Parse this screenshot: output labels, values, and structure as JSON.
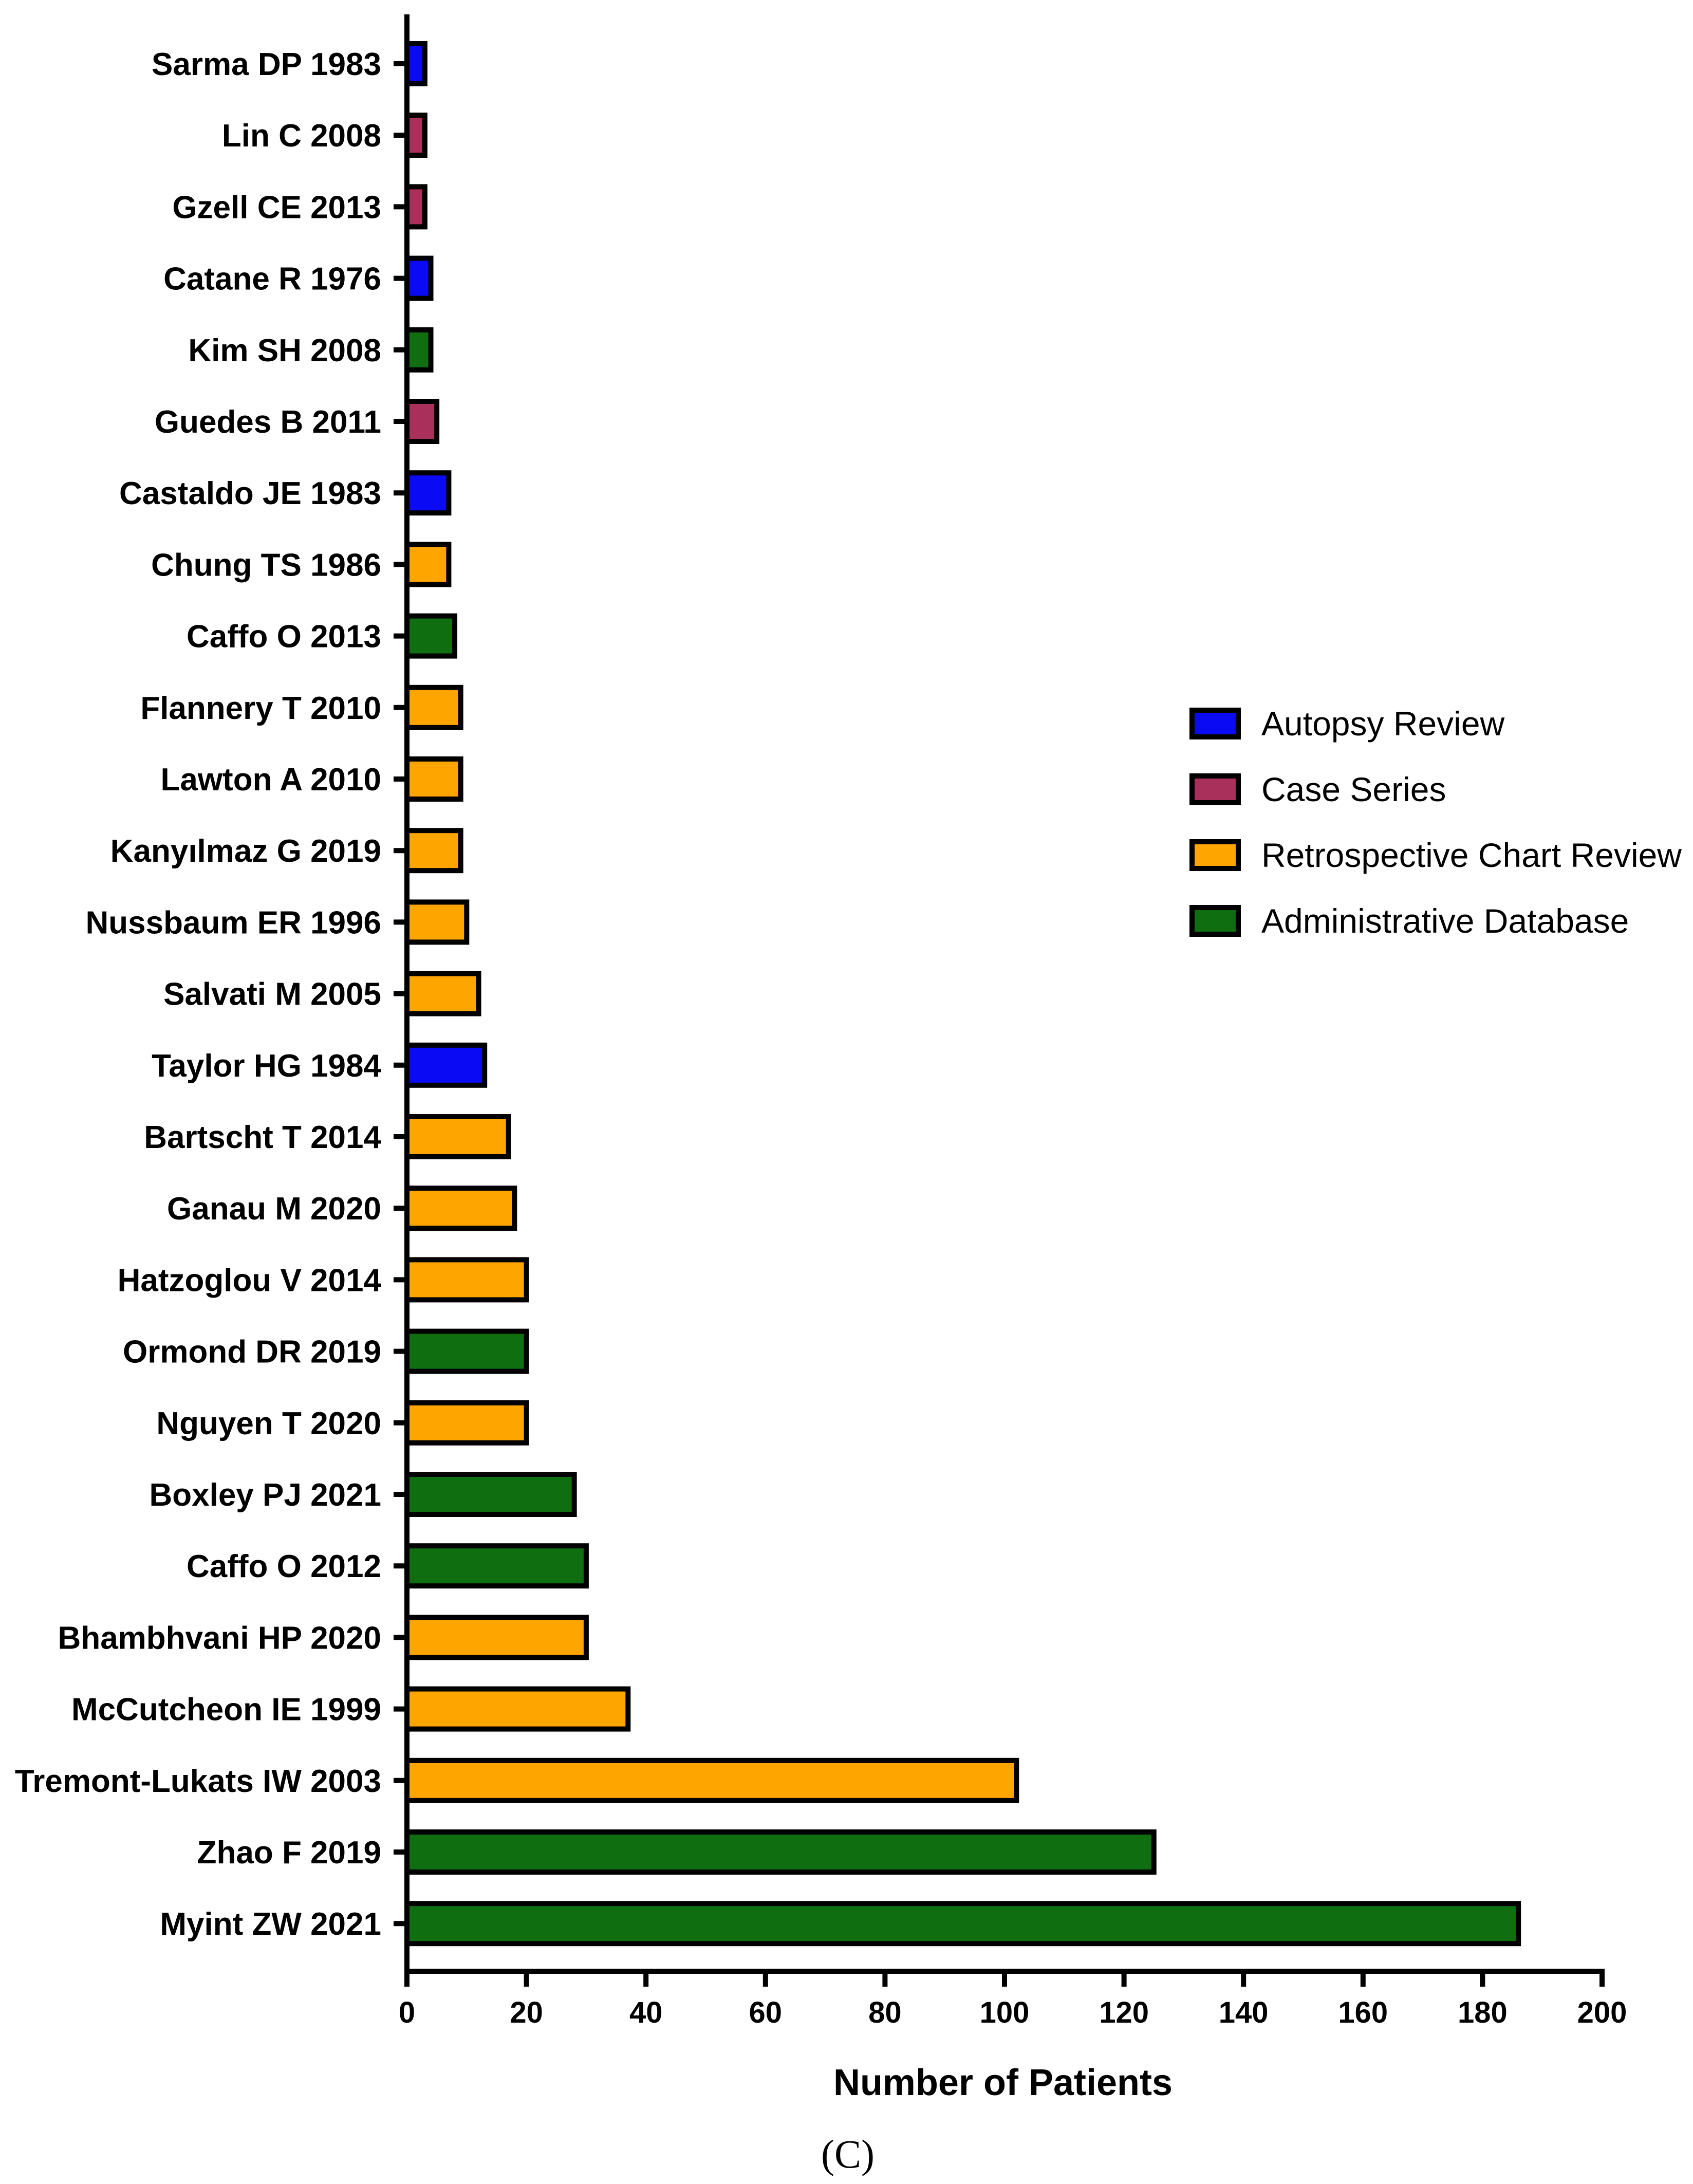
{
  "chart_data": {
    "type": "bar",
    "orientation": "horizontal",
    "xlabel": "Number of Patients",
    "xlim": [
      0,
      200
    ],
    "xticks": [
      0,
      20,
      40,
      60,
      80,
      100,
      120,
      140,
      160,
      180,
      200
    ],
    "grid": false,
    "legend_position": "right",
    "categories": [
      "Sarma DP 1983",
      "Lin C 2008",
      "Gzell CE 2013",
      "Catane R 1976",
      "Kim SH 2008",
      "Guedes B 2011",
      "Castaldo JE 1983",
      "Chung TS 1986",
      "Caffo O 2013",
      "Flannery T 2010",
      "Lawton A 2010",
      "Kanyılmaz G 2019",
      "Nussbaum ER 1996",
      "Salvati M 2005",
      "Taylor HG 1984",
      "Bartscht T 2014",
      "Ganau M 2020",
      "Hatzoglou V 2014",
      "Ormond DR 2019",
      "Nguyen T 2020",
      "Boxley PJ 2021",
      "Caffo O 2012",
      "Bhambhvani HP 2020",
      "McCutcheon IE 1999",
      "Tremont-Lukats IW 2003",
      "Zhao F 2019",
      "Myint ZW 2021"
    ],
    "values": [
      3,
      3,
      3,
      4,
      4,
      5,
      7,
      7,
      8,
      9,
      9,
      9,
      10,
      12,
      13,
      17,
      18,
      20,
      20,
      20,
      28,
      30,
      30,
      37,
      102,
      125,
      186
    ],
    "study_types": [
      "Autopsy Review",
      "Case Series",
      "Case Series",
      "Autopsy Review",
      "Administrative Database",
      "Case Series",
      "Autopsy Review",
      "Retrospective Chart Review",
      "Administrative Database",
      "Retrospective Chart Review",
      "Retrospective Chart Review",
      "Retrospective Chart Review",
      "Retrospective Chart Review",
      "Retrospective Chart Review",
      "Autopsy Review",
      "Retrospective Chart Review",
      "Retrospective Chart Review",
      "Retrospective Chart Review",
      "Administrative Database",
      "Retrospective Chart Review",
      "Administrative Database",
      "Administrative Database",
      "Retrospective Chart Review",
      "Retrospective Chart Review",
      "Retrospective Chart Review",
      "Administrative Database",
      "Administrative Database"
    ],
    "legend": [
      {
        "name": "Autopsy Review",
        "color": "#0a0af5"
      },
      {
        "name": "Case Series",
        "color": "#a8305a"
      },
      {
        "name": "Retrospective Chart Review",
        "color": "#ffa500"
      },
      {
        "name": "Administrative Database",
        "color": "#0f6e0f"
      }
    ],
    "panel_label": "(C)"
  }
}
